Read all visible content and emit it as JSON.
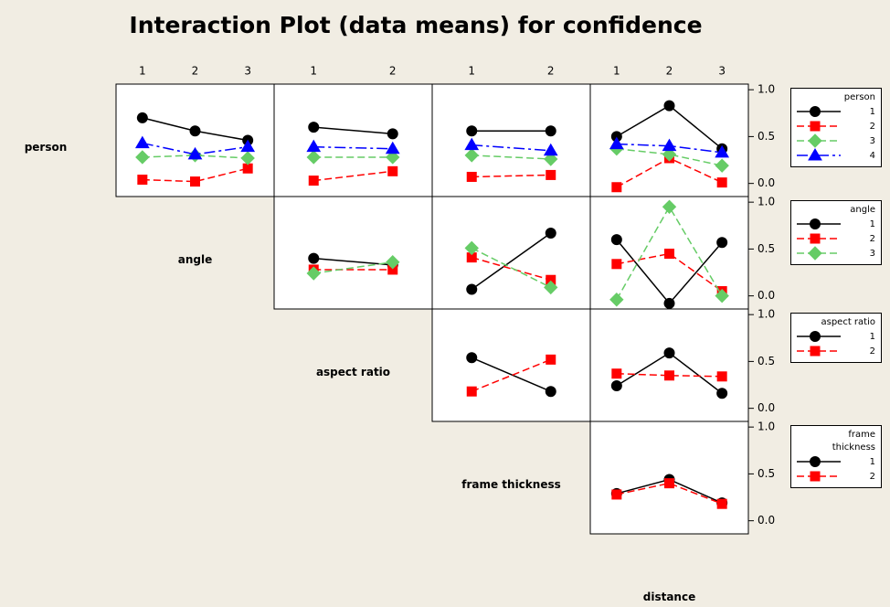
{
  "title": "Interaction Plot (data means) for confidence",
  "factors": [
    {
      "name": "person",
      "levels": [
        "1",
        "2",
        "3",
        "4"
      ]
    },
    {
      "name": "angle",
      "levels": [
        "1",
        "2",
        "3"
      ]
    },
    {
      "name": "aspect ratio",
      "levels": [
        "1",
        "2"
      ]
    },
    {
      "name": "frame thickness",
      "levels": [
        "1",
        "2"
      ]
    },
    {
      "name": "distance",
      "levels": [
        "1",
        "2",
        "3"
      ]
    }
  ],
  "styles": [
    {
      "color": "#000000",
      "marker": "circle",
      "dash": "solid"
    },
    {
      "color": "#ff0000",
      "marker": "square",
      "dash": "dashed"
    },
    {
      "color": "#66cc66",
      "marker": "diamond",
      "dash": "dashed"
    },
    {
      "color": "#0000ff",
      "marker": "triangle",
      "dash": "dashdot"
    }
  ],
  "chart_data": [
    {
      "type": "line",
      "trace_factor": "person",
      "x_factor": "angle",
      "series": [
        {
          "values": [
            0.7,
            0.56,
            0.46
          ]
        },
        {
          "values": [
            0.04,
            0.02,
            0.16
          ]
        },
        {
          "values": [
            0.28,
            0.3,
            0.27
          ]
        },
        {
          "values": [
            0.43,
            0.31,
            0.39
          ]
        }
      ],
      "ylim": [
        -0.14,
        1.06
      ],
      "yticks": [
        {
          "value": 0,
          "label": "0.0"
        },
        {
          "value": 0.5,
          "label": "0.5"
        },
        {
          "value": 1,
          "label": "1.0"
        }
      ]
    },
    {
      "type": "line",
      "trace_factor": "person",
      "x_factor": "aspect ratio",
      "series": [
        {
          "values": [
            0.6,
            0.53
          ]
        },
        {
          "values": [
            0.03,
            0.13
          ]
        },
        {
          "values": [
            0.28,
            0.28
          ]
        },
        {
          "values": [
            0.39,
            0.37
          ]
        }
      ],
      "ylim": [
        -0.14,
        1.06
      ],
      "yticks": [
        {
          "value": 0,
          "label": "0.0"
        },
        {
          "value": 0.5,
          "label": "0.5"
        },
        {
          "value": 1,
          "label": "1.0"
        }
      ]
    },
    {
      "type": "line",
      "trace_factor": "person",
      "x_factor": "frame thickness",
      "series": [
        {
          "values": [
            0.56,
            0.56
          ]
        },
        {
          "values": [
            0.07,
            0.09
          ]
        },
        {
          "values": [
            0.3,
            0.26
          ]
        },
        {
          "values": [
            0.41,
            0.35
          ]
        }
      ],
      "ylim": [
        -0.14,
        1.06
      ],
      "yticks": [
        {
          "value": 0,
          "label": "0.0"
        },
        {
          "value": 0.5,
          "label": "0.5"
        },
        {
          "value": 1,
          "label": "1.0"
        }
      ]
    },
    {
      "type": "line",
      "trace_factor": "person",
      "x_factor": "distance",
      "series": [
        {
          "values": [
            0.5,
            0.83,
            0.37
          ]
        },
        {
          "values": [
            -0.04,
            0.27,
            0.01
          ]
        },
        {
          "values": [
            0.37,
            0.31,
            0.19
          ]
        },
        {
          "values": [
            0.42,
            0.4,
            0.33
          ]
        }
      ],
      "ylim": [
        -0.14,
        1.06
      ],
      "yticks": [
        {
          "value": 0,
          "label": "0.0"
        },
        {
          "value": 0.5,
          "label": "0.5"
        },
        {
          "value": 1,
          "label": "1.0"
        }
      ]
    },
    {
      "type": "line",
      "trace_factor": "angle",
      "x_factor": "aspect ratio",
      "series": [
        {
          "values": [
            0.4,
            0.33
          ]
        },
        {
          "values": [
            0.28,
            0.28
          ]
        },
        {
          "values": [
            0.24,
            0.36
          ]
        }
      ],
      "ylim": [
        -0.14,
        1.06
      ],
      "yticks": [
        {
          "value": 0,
          "label": "0.0"
        },
        {
          "value": 0.5,
          "label": "0.5"
        },
        {
          "value": 1,
          "label": "1.0"
        }
      ]
    },
    {
      "type": "line",
      "trace_factor": "angle",
      "x_factor": "frame thickness",
      "series": [
        {
          "values": [
            0.07,
            0.67
          ]
        },
        {
          "values": [
            0.41,
            0.17
          ]
        },
        {
          "values": [
            0.51,
            0.09
          ]
        }
      ],
      "ylim": [
        -0.14,
        1.06
      ],
      "yticks": [
        {
          "value": 0,
          "label": "0.0"
        },
        {
          "value": 0.5,
          "label": "0.5"
        },
        {
          "value": 1,
          "label": "1.0"
        }
      ]
    },
    {
      "type": "line",
      "trace_factor": "angle",
      "x_factor": "distance",
      "series": [
        {
          "values": [
            0.6,
            -0.08,
            0.57
          ]
        },
        {
          "values": [
            0.34,
            0.45,
            0.05
          ]
        },
        {
          "values": [
            -0.04,
            0.95,
            0.0
          ]
        }
      ],
      "ylim": [
        -0.14,
        1.06
      ],
      "yticks": [
        {
          "value": 0,
          "label": "0.0"
        },
        {
          "value": 0.5,
          "label": "0.5"
        },
        {
          "value": 1,
          "label": "1.0"
        }
      ]
    },
    {
      "type": "line",
      "trace_factor": "aspect ratio",
      "x_factor": "frame thickness",
      "series": [
        {
          "values": [
            0.54,
            0.18
          ]
        },
        {
          "values": [
            0.18,
            0.52
          ]
        }
      ],
      "ylim": [
        -0.14,
        1.06
      ],
      "yticks": [
        {
          "value": 0,
          "label": "0.0"
        },
        {
          "value": 0.5,
          "label": "0.5"
        },
        {
          "value": 1,
          "label": "1.0"
        }
      ]
    },
    {
      "type": "line",
      "trace_factor": "aspect ratio",
      "x_factor": "distance",
      "series": [
        {
          "values": [
            0.24,
            0.59,
            0.16
          ]
        },
        {
          "values": [
            0.37,
            0.35,
            0.34
          ]
        }
      ],
      "ylim": [
        -0.14,
        1.06
      ],
      "yticks": [
        {
          "value": 0,
          "label": "0.0"
        },
        {
          "value": 0.5,
          "label": "0.5"
        },
        {
          "value": 1,
          "label": "1.0"
        }
      ]
    },
    {
      "type": "line",
      "trace_factor": "frame thickness",
      "x_factor": "distance",
      "series": [
        {
          "values": [
            0.29,
            0.44,
            0.19
          ]
        },
        {
          "values": [
            0.28,
            0.4,
            0.18
          ]
        }
      ],
      "ylim": [
        -0.14,
        1.06
      ],
      "yticks": [
        {
          "value": 0,
          "label": "0.0"
        },
        {
          "value": 0.5,
          "label": "0.5"
        },
        {
          "value": 1,
          "label": "1.0"
        }
      ]
    }
  ]
}
